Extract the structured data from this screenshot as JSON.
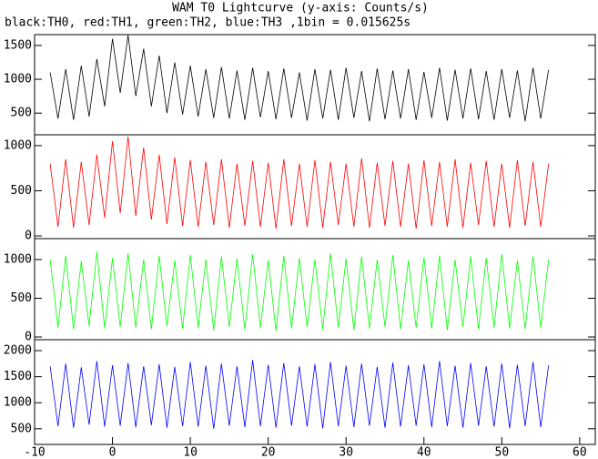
{
  "header": {
    "title": "WAM T0 Lightcurve (y-axis: Counts/s)",
    "subtitle": "black:TH0, red:TH1, green:TH2, blue:TH3 ,1bin = 0.015625s"
  },
  "chart_data": [
    {
      "type": "line",
      "xlim": [
        -10,
        62
      ],
      "ylim": [
        180,
        1660
      ],
      "yticks": [
        500,
        1000,
        1500
      ],
      "series": [
        {
          "name": "TH0",
          "color": "#000000",
          "x": [
            -8,
            -7,
            -6,
            -5,
            -4,
            -3,
            -2,
            -1,
            0,
            1,
            2,
            3,
            4,
            5,
            6,
            7,
            8,
            9,
            10,
            11,
            12,
            13,
            14,
            15,
            16,
            17,
            18,
            19,
            20,
            21,
            22,
            23,
            24,
            25,
            26,
            27,
            28,
            29,
            30,
            31,
            32,
            33,
            34,
            35,
            36,
            37,
            38,
            39,
            40,
            41,
            42,
            43,
            44,
            45,
            46,
            47,
            48,
            49,
            50,
            51,
            52,
            53,
            54,
            55,
            56
          ],
          "values": [
            1100,
            420,
            1150,
            400,
            1200,
            450,
            1300,
            600,
            1600,
            800,
            1650,
            750,
            1450,
            600,
            1350,
            500,
            1250,
            480,
            1200,
            450,
            1150,
            430,
            1180,
            420,
            1130,
            400,
            1170,
            440,
            1120,
            410,
            1160,
            430,
            1100,
            390,
            1150,
            420,
            1140,
            400,
            1170,
            430,
            1120,
            380,
            1160,
            410,
            1130,
            420,
            1150,
            400,
            1110,
            430,
            1170,
            390,
            1140,
            420,
            1160,
            410,
            1120,
            400,
            1150,
            430,
            1130,
            380,
            1170,
            420,
            1140
          ]
        }
      ]
    },
    {
      "type": "line",
      "xlim": [
        -10,
        62
      ],
      "ylim": [
        -30,
        1120
      ],
      "yticks": [
        0,
        500,
        1000
      ],
      "series": [
        {
          "name": "TH1",
          "color": "#ff0000",
          "x": [
            -8,
            -7,
            -6,
            -5,
            -4,
            -3,
            -2,
            -1,
            0,
            1,
            2,
            3,
            4,
            5,
            6,
            7,
            8,
            9,
            10,
            11,
            12,
            13,
            14,
            15,
            16,
            17,
            18,
            19,
            20,
            21,
            22,
            23,
            24,
            25,
            26,
            27,
            28,
            29,
            30,
            31,
            32,
            33,
            34,
            35,
            36,
            37,
            38,
            39,
            40,
            41,
            42,
            43,
            44,
            45,
            46,
            47,
            48,
            49,
            50,
            51,
            52,
            53,
            54,
            55,
            56
          ],
          "values": [
            800,
            100,
            850,
            90,
            820,
            120,
            900,
            200,
            1050,
            250,
            1100,
            220,
            980,
            180,
            900,
            130,
            870,
            110,
            840,
            100,
            820,
            120,
            850,
            90,
            800,
            110,
            830,
            100,
            810,
            80,
            850,
            110,
            800,
            100,
            840,
            90,
            820,
            120,
            800,
            100,
            860,
            90,
            810,
            110,
            830,
            100,
            800,
            80,
            840,
            110,
            820,
            100,
            850,
            90,
            810,
            120,
            830,
            100,
            800,
            90,
            840,
            110,
            820,
            100,
            800
          ]
        }
      ]
    },
    {
      "type": "line",
      "xlim": [
        -10,
        62
      ],
      "ylim": [
        -35,
        1270
      ],
      "yticks": [
        0,
        500,
        1000
      ],
      "series": [
        {
          "name": "TH2",
          "color": "#00ff00",
          "x": [
            -8,
            -7,
            -6,
            -5,
            -4,
            -3,
            -2,
            -1,
            0,
            1,
            2,
            3,
            4,
            5,
            6,
            7,
            8,
            9,
            10,
            11,
            12,
            13,
            14,
            15,
            16,
            17,
            18,
            19,
            20,
            21,
            22,
            23,
            24,
            25,
            26,
            27,
            28,
            29,
            30,
            31,
            32,
            33,
            34,
            35,
            36,
            37,
            38,
            39,
            40,
            41,
            42,
            43,
            44,
            45,
            46,
            47,
            48,
            49,
            50,
            51,
            52,
            53,
            54,
            55,
            56
          ],
          "values": [
            1000,
            120,
            1050,
            100,
            980,
            140,
            1100,
            110,
            1020,
            130,
            1080,
            120,
            1000,
            100,
            1050,
            140,
            990,
            110,
            1060,
            120,
            1000,
            90,
            1040,
            130,
            1010,
            100,
            1070,
            120,
            990,
            80,
            1050,
            110,
            1020,
            130,
            1000,
            100,
            1080,
            120,
            1010,
            90,
            1040,
            110,
            1000,
            130,
            1060,
            100,
            990,
            120,
            1030,
            110,
            1050,
            90,
            1000,
            130,
            1040,
            100,
            1020,
            120,
            1070,
            110,
            990,
            100,
            1040,
            120,
            1000
          ]
        }
      ]
    },
    {
      "type": "line",
      "xlim": [
        -10,
        62
      ],
      "ylim": [
        200,
        2210
      ],
      "yticks": [
        500,
        1000,
        1500,
        2000
      ],
      "xticks": [
        -10,
        0,
        10,
        20,
        30,
        40,
        50,
        60
      ],
      "series": [
        {
          "name": "TH3",
          "color": "#0000ff",
          "x": [
            -8,
            -7,
            -6,
            -5,
            -4,
            -3,
            -2,
            -1,
            0,
            1,
            2,
            3,
            4,
            5,
            6,
            7,
            8,
            9,
            10,
            11,
            12,
            13,
            14,
            15,
            16,
            17,
            18,
            19,
            20,
            21,
            22,
            23,
            24,
            25,
            26,
            27,
            28,
            29,
            30,
            31,
            32,
            33,
            34,
            35,
            36,
            37,
            38,
            39,
            40,
            41,
            42,
            43,
            44,
            45,
            46,
            47,
            48,
            49,
            50,
            51,
            52,
            53,
            54,
            55,
            56
          ],
          "values": [
            1700,
            550,
            1750,
            520,
            1680,
            580,
            1800,
            540,
            1720,
            560,
            1760,
            530,
            1700,
            570,
            1740,
            520,
            1690,
            550,
            1780,
            540,
            1710,
            500,
            1750,
            560,
            1700,
            530,
            1820,
            550,
            1730,
            520,
            1760,
            560,
            1700,
            540,
            1740,
            510,
            1780,
            550,
            1710,
            530,
            1750,
            560,
            1690,
            520,
            1770,
            540,
            1720,
            560,
            1740,
            530,
            1800,
            550,
            1710,
            520,
            1760,
            560,
            1700,
            540,
            1750,
            510,
            1730,
            550,
            1780,
            530,
            1720
          ]
        }
      ]
    }
  ]
}
